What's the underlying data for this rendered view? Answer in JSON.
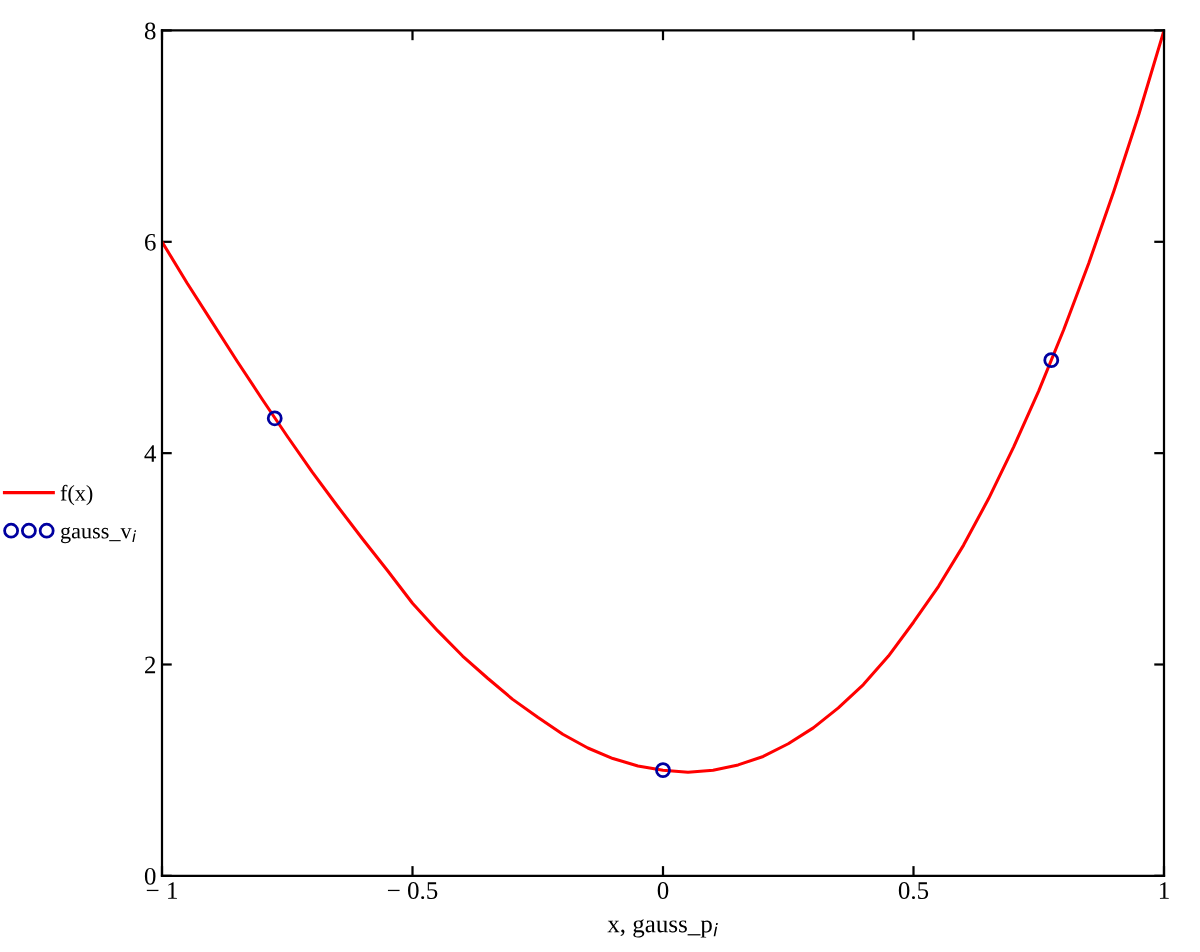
{
  "chart_data": {
    "type": "line",
    "xlabel": "x, gauss_p$_{i}$",
    "xlim": [
      -1,
      1
    ],
    "ylim": [
      0,
      8
    ],
    "xticks": [
      {
        "value": -1,
        "label": "− 1"
      },
      {
        "value": -0.5,
        "label": "− 0.5"
      },
      0,
      0.5,
      1
    ],
    "yticks": [
      0,
      2,
      4,
      6,
      8
    ],
    "grid": false,
    "legend": "left",
    "series": [
      {
        "name": "f(x)",
        "color": "#ff0000",
        "marker": "none",
        "line_style": "solid",
        "x": [
          -1,
          -0.95,
          -0.9,
          -0.85,
          -0.8,
          -0.75,
          -0.7,
          -0.65,
          -0.6,
          -0.55,
          -0.5,
          -0.45,
          -0.4,
          -0.35,
          -0.3,
          -0.25,
          -0.2,
          -0.15,
          -0.1,
          -0.05,
          0,
          0.05,
          0.1,
          0.15,
          0.2,
          0.25,
          0.3,
          0.35,
          0.4,
          0.45,
          0.5,
          0.55,
          0.6,
          0.65,
          0.7,
          0.75,
          0.8,
          0.85,
          0.9,
          0.95,
          1
        ],
        "values": [
          6.0,
          5.61,
          5.24,
          4.87,
          4.51,
          4.16,
          3.82,
          3.5,
          3.19,
          2.89,
          2.58,
          2.32,
          2.08,
          1.87,
          1.67,
          1.5,
          1.34,
          1.21,
          1.11,
          1.04,
          1.0,
          0.98,
          1.0,
          1.05,
          1.13,
          1.25,
          1.4,
          1.59,
          1.81,
          2.08,
          2.4,
          2.74,
          3.13,
          3.57,
          4.06,
          4.59,
          5.17,
          5.8,
          6.48,
          7.21,
          8.0
        ]
      },
      {
        "name": "gauss_v$_{i}$",
        "color": "#0000a0",
        "type": "scatter",
        "marker": "circle",
        "x": [
          -0.775,
          0,
          0.775
        ],
        "values": [
          4.33,
          1.0,
          4.88
        ]
      }
    ]
  }
}
